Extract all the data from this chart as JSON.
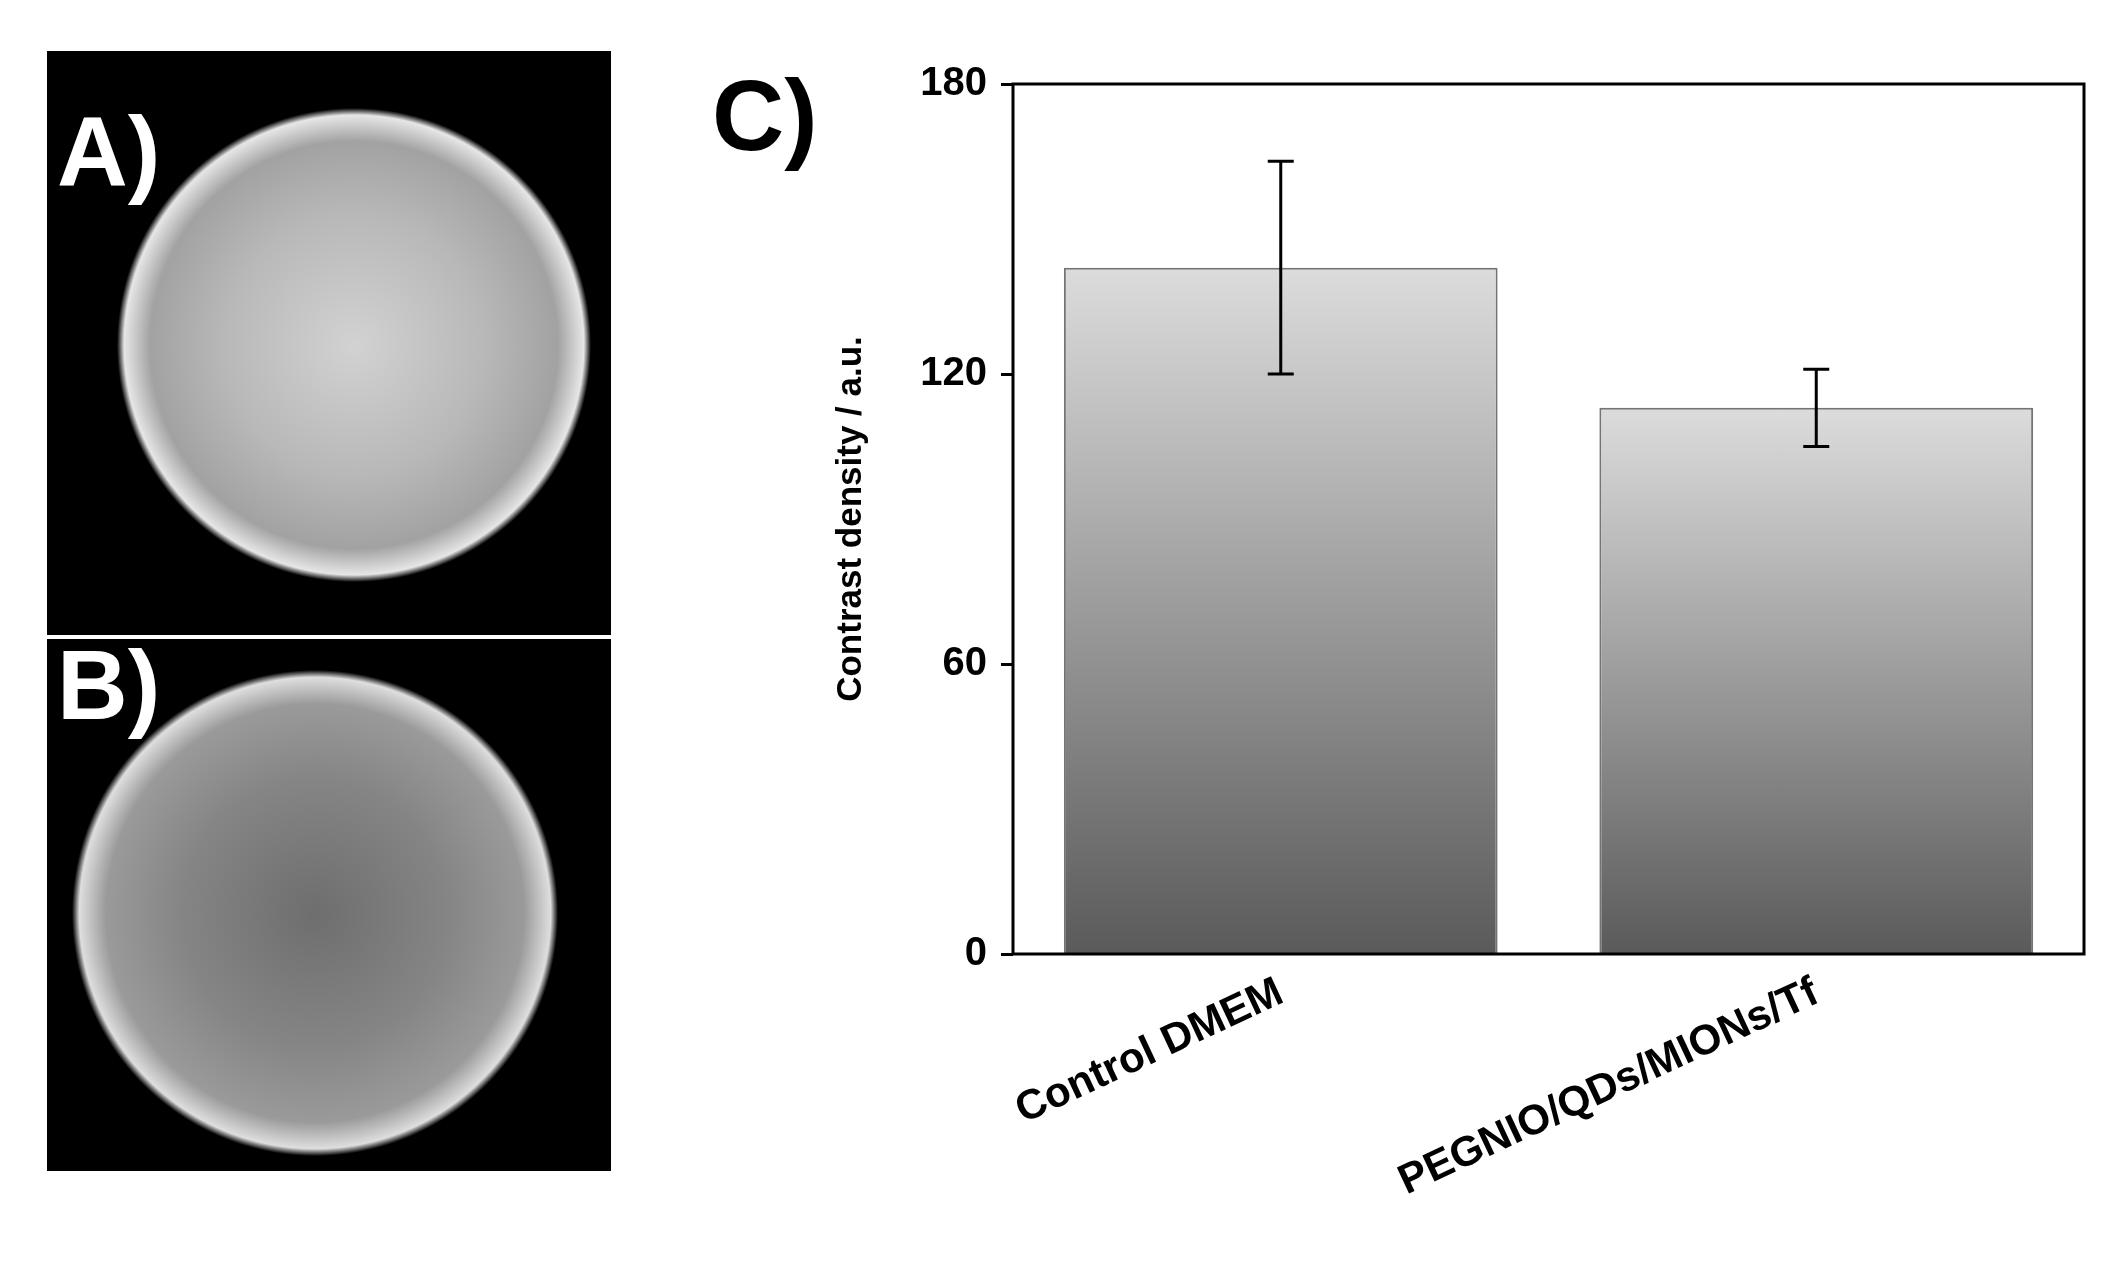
{
  "chart_data": [
    {
      "type": "other",
      "annotations": [
        "A)",
        "B)"
      ]
    },
    {
      "type": "bar",
      "title": "C)",
      "ylabel": "Contrast density / a.u.",
      "categories": [
        "Control DMEM",
        "PEGNIO/QDs/MIONs/Tf"
      ],
      "values": [
        142,
        113
      ],
      "errors": [
        22,
        8
      ],
      "color": "#9b9b9b",
      "ylim": [
        0,
        180
      ],
      "yticks": [
        0,
        60,
        120,
        180
      ],
      "grid": false,
      "legend": false
    }
  ]
}
